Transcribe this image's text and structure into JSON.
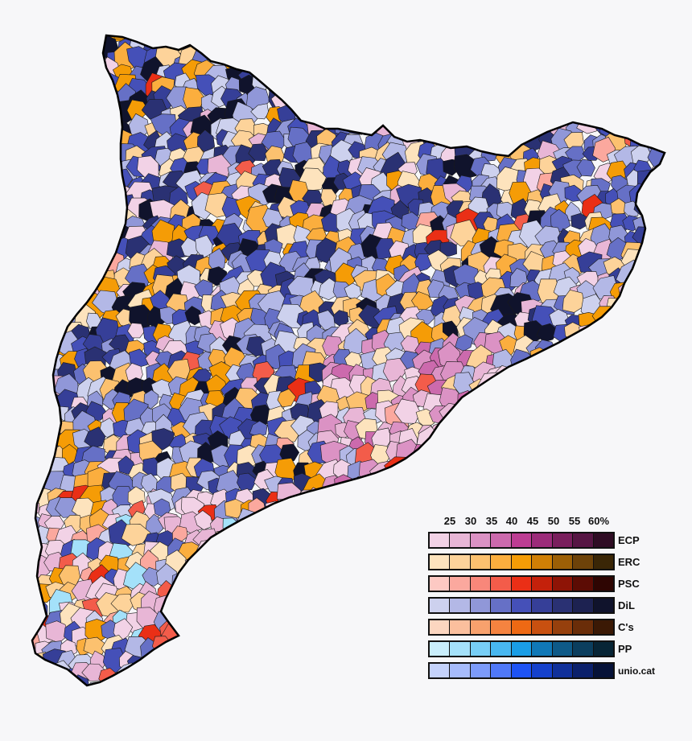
{
  "legend": {
    "ticks": [
      "25",
      "30",
      "35",
      "40",
      "45",
      "50",
      "55",
      "60%"
    ],
    "parties": [
      {
        "name": "ECP",
        "colors": [
          "#f2d2e6",
          "#e8b6d6",
          "#db92c4",
          "#cc6aad",
          "#bd3d93",
          "#9c2c7a",
          "#7a1f5d",
          "#571644",
          "#2f0c24"
        ]
      },
      {
        "name": "ERC",
        "colors": [
          "#fde3bd",
          "#fdd39a",
          "#fcc16f",
          "#fbae3e",
          "#f59c06",
          "#d07f05",
          "#9c5f06",
          "#6d4209",
          "#3a2606"
        ]
      },
      {
        "name": "PSC",
        "colors": [
          "#fdc9c3",
          "#fba89e",
          "#f8877a",
          "#f35c4a",
          "#ea2f16",
          "#c4210b",
          "#8e1406",
          "#5c0c04",
          "#2e0502"
        ]
      },
      {
        "name": "DiL",
        "colors": [
          "#cdd1ee",
          "#b3b8e6",
          "#9097d8",
          "#6670c6",
          "#4550b8",
          "#363f98",
          "#2a3173",
          "#1d2251",
          "#10132c"
        ]
      },
      {
        "name": "C's",
        "colors": [
          "#fcd6c0",
          "#fbbf9d",
          "#f8a16d",
          "#f58340",
          "#ee6914",
          "#c85010",
          "#96400d",
          "#6a2d09",
          "#3b1905"
        ]
      },
      {
        "name": "PP",
        "colors": [
          "#c9eefc",
          "#a4e1fa",
          "#77cef6",
          "#48b7f0",
          "#1a9de6",
          "#1078b7",
          "#0e5a88",
          "#0b3e5e",
          "#072536"
        ]
      },
      {
        "name": "unio.cat",
        "colors": [
          "#c4d2fb",
          "#a6bbfb",
          "#7c9bfa",
          "#4f78f8",
          "#1e53f5",
          "#1541cc",
          "#10309a",
          "#0b206b",
          "#061238"
        ]
      }
    ]
  },
  "map": {
    "colors": {
      "stroke": "#1a1a1a",
      "ecp": [
        "#f2d2e6",
        "#e8b6d6",
        "#db92c4",
        "#cc6aad"
      ],
      "erc": [
        "#fde3bd",
        "#fdd39a",
        "#fcc16f",
        "#fbae3e",
        "#f59c06"
      ],
      "psc": [
        "#fba89e",
        "#f35c4a",
        "#ea2f16"
      ],
      "dil": [
        "#cdd1ee",
        "#b3b8e6",
        "#9097d8",
        "#6670c6",
        "#4550b8",
        "#363f98",
        "#2a3173",
        "#10132c"
      ],
      "pp": [
        "#a4e1fa"
      ]
    }
  }
}
